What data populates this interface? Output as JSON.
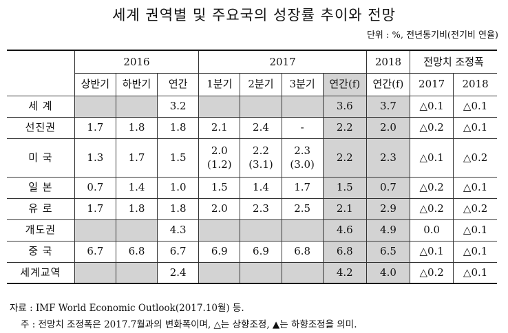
{
  "title": "세계 권역별 및 주요국의 성장률 추이와 전망",
  "unit": "단위 : %, 전년동기비(전기비 연율)",
  "header": {
    "y2016": "2016",
    "y2017": "2017",
    "y2018": "2018",
    "adjust": "전망치 조정폭",
    "h1": "상반기",
    "h2": "하반기",
    "annual": "연간",
    "q1": "1분기",
    "q2": "2분기",
    "q3": "3분기",
    "annual_f_2017": "연간(f)",
    "annual_f_2018": "연간(f)",
    "adj2017": "2017",
    "adj2018": "2018"
  },
  "rows": [
    {
      "label": "세 계",
      "h1": "",
      "h2": "",
      "y": "3.2",
      "q1": "",
      "q2": "",
      "q3": "",
      "f17": "3.6",
      "f18": "3.7",
      "a17": "△0.1",
      "a18": "△0.1"
    },
    {
      "label": "선진권",
      "h1": "1.7",
      "h2": "1.8",
      "y": "1.8",
      "q1": "2.1",
      "q2": "2.4",
      "q3": "-",
      "f17": "2.2",
      "f18": "2.0",
      "a17": "△0.2",
      "a18": "△0.1"
    },
    {
      "label": "미 국",
      "h1": "1.3",
      "h2": "1.7",
      "y": "1.5",
      "q1": "2.0",
      "q1b": "(1.2)",
      "q2": "2.2",
      "q2b": "(3.1)",
      "q3": "2.3",
      "q3b": "(3.0)",
      "f17": "2.2",
      "f18": "2.3",
      "a17": "△0.1",
      "a18": "△0.2"
    },
    {
      "label": "일 본",
      "h1": "0.7",
      "h2": "1.4",
      "y": "1.0",
      "q1": "1.5",
      "q2": "1.4",
      "q3": "1.7",
      "f17": "1.5",
      "f18": "0.7",
      "a17": "△0.2",
      "a18": "△0.1"
    },
    {
      "label": "유 로",
      "h1": "1.7",
      "h2": "1.8",
      "y": "1.8",
      "q1": "2.0",
      "q2": "2.3",
      "q3": "2.5",
      "f17": "2.1",
      "f18": "2.9",
      "a17": "△0.2",
      "a18": "△0.2"
    },
    {
      "label": "개도권",
      "h1": "",
      "h2": "",
      "y": "4.3",
      "q1": "",
      "q2": "",
      "q3": "",
      "f17": "4.6",
      "f18": "4.9",
      "a17": "0.0",
      "a18": "△0.1"
    },
    {
      "label": "중 국",
      "h1": "6.7",
      "h2": "6.8",
      "y": "6.7",
      "q1": "6.9",
      "q2": "6.9",
      "q3": "6.8",
      "f17": "6.8",
      "f18": "6.5",
      "a17": "△0.1",
      "a18": "△0.1"
    },
    {
      "label": "세계교역",
      "h1": "",
      "h2": "",
      "y": "2.4",
      "q1": "",
      "q2": "",
      "q3": "",
      "f17": "4.2",
      "f18": "4.0",
      "a17": "△0.2",
      "a18": "△0.1"
    }
  ],
  "notes": {
    "source": "자료 : IMF World Economic Outlook(2017.10월) 등.",
    "note": "주 : 전망치 조정폭은 2017.7월과의 변화폭이며, △는 상향조정, ▲는 하향조정을 의미."
  }
}
